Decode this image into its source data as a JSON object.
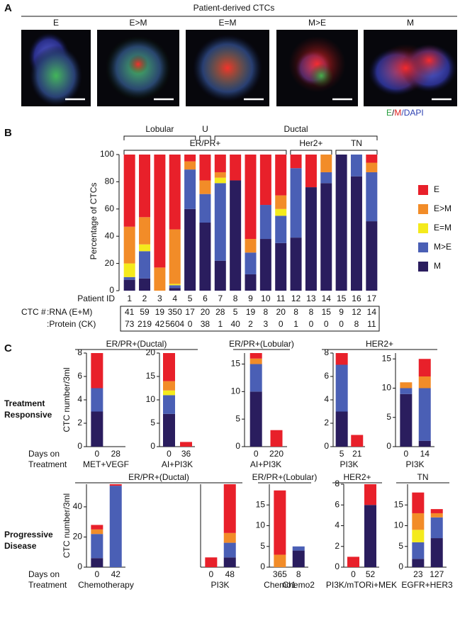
{
  "panel_a": {
    "label": "A",
    "title": "Patient-derived CTCs",
    "images": [
      "E",
      "E>M",
      "E=M",
      "M>E",
      "M"
    ],
    "stain_legend": [
      "E",
      "/",
      "M",
      "/DAPI"
    ]
  },
  "panel_b": {
    "label": "B",
    "groups_top": [
      "Lobular",
      "U",
      "Ductal"
    ],
    "groups_bottom": [
      "ER/PR+",
      "Her2+",
      "TN"
    ],
    "table": {
      "label": "CTC #",
      "rows": [
        {
          "label": ":RNA (E+M)",
          "values": [
            41,
            59,
            19,
            350,
            17,
            20,
            28,
            5,
            19,
            8,
            20,
            8,
            8,
            15,
            9,
            12,
            14
          ]
        },
        {
          "label": ":Protein (CK)",
          "values": [
            73,
            219,
            42,
            5604,
            0,
            38,
            1,
            40,
            2,
            3,
            0,
            1,
            0,
            0,
            0,
            8,
            11
          ]
        }
      ]
    }
  },
  "panel_c": {
    "label": "C",
    "rows": [
      {
        "title": [
          "Treatment",
          "Responsive"
        ],
        "y_label": "CTC number/3ml",
        "x_label": [
          "Days on",
          "Treatment"
        ]
      },
      {
        "title": [
          "Progressive",
          "Disease"
        ],
        "y_label": "CTC number/3ml",
        "x_label": [
          "Days on",
          "Treatment"
        ]
      }
    ]
  },
  "chart_data": [
    {
      "type": "bar",
      "stacked": true,
      "y_label": "Percentage of CTCs",
      "x_label": "Patient ID",
      "categories": [
        1,
        2,
        3,
        4,
        5,
        6,
        7,
        8,
        9,
        10,
        11,
        12,
        13,
        14,
        15,
        16,
        17
      ],
      "ylim": [
        0,
        100
      ],
      "yticks": [
        0,
        20,
        40,
        60,
        80,
        100
      ],
      "legend": "right",
      "series": [
        {
          "name": "E",
          "color": "#e8202a",
          "values": [
            53,
            46,
            83,
            55,
            5,
            19,
            13,
            19,
            62,
            37,
            30,
            10,
            24,
            0,
            0,
            0,
            6
          ]
        },
        {
          "name": "E>M",
          "color": "#f28c28",
          "values": [
            27,
            20,
            17,
            40,
            6,
            10,
            4,
            0,
            10,
            0,
            10,
            0,
            0,
            13,
            0,
            0,
            7
          ]
        },
        {
          "name": "E=M",
          "color": "#f4ea1c",
          "values": [
            10,
            5,
            0,
            1,
            0,
            0,
            4,
            0,
            0,
            0,
            5,
            0,
            0,
            0,
            0,
            0,
            0
          ]
        },
        {
          "name": "M>E",
          "color": "#4a5fb5",
          "values": [
            2,
            20,
            0,
            2,
            29,
            21,
            57,
            0,
            16,
            25,
            20,
            51,
            0,
            8,
            0,
            16,
            36
          ]
        },
        {
          "name": "M",
          "color": "#2a1d5e",
          "values": [
            8,
            9,
            0,
            2,
            60,
            50,
            22,
            81,
            12,
            38,
            35,
            39,
            76,
            79,
            100,
            84,
            51
          ]
        }
      ]
    },
    {
      "type": "bar",
      "stacked": true,
      "group": "ER/PR+(Ductal)",
      "categories": [
        0,
        28
      ],
      "treatment": "MET+VEGF",
      "ylim": [
        0,
        8
      ],
      "yticks": [
        0,
        2,
        4,
        6,
        8
      ],
      "series": [
        {
          "color": "#e8202a",
          "values": [
            3,
            0
          ]
        },
        {
          "color": "#f28c28",
          "values": [
            0,
            0
          ]
        },
        {
          "color": "#f4ea1c",
          "values": [
            0,
            0
          ]
        },
        {
          "color": "#4a5fb5",
          "values": [
            2,
            0
          ]
        },
        {
          "color": "#2a1d5e",
          "values": [
            3,
            0
          ]
        }
      ]
    },
    {
      "type": "bar",
      "stacked": true,
      "categories": [
        0,
        36
      ],
      "treatment": "AI+PI3K",
      "ylim": [
        0,
        20
      ],
      "yticks": [
        0,
        5,
        10,
        15,
        20
      ],
      "series": [
        {
          "color": "#e8202a",
          "values": [
            6,
            1
          ]
        },
        {
          "color": "#f28c28",
          "values": [
            2,
            0
          ]
        },
        {
          "color": "#f4ea1c",
          "values": [
            1,
            0
          ]
        },
        {
          "color": "#4a5fb5",
          "values": [
            4,
            0
          ]
        },
        {
          "color": "#2a1d5e",
          "values": [
            7,
            0
          ]
        }
      ]
    },
    {
      "type": "bar",
      "stacked": true,
      "group": "ER/PR+(Lobular)",
      "categories": [
        0,
        220
      ],
      "treatment": "AI+PI3K",
      "ylim": [
        0,
        17
      ],
      "yticks": [
        0,
        5,
        10,
        15
      ],
      "series": [
        {
          "color": "#e8202a",
          "values": [
            1,
            3
          ]
        },
        {
          "color": "#f28c28",
          "values": [
            1,
            0
          ]
        },
        {
          "color": "#f4ea1c",
          "values": [
            0,
            0
          ]
        },
        {
          "color": "#4a5fb5",
          "values": [
            5,
            0
          ]
        },
        {
          "color": "#2a1d5e",
          "values": [
            10,
            0
          ]
        }
      ]
    },
    {
      "type": "bar",
      "stacked": true,
      "group": "HER2+",
      "categories": [
        5,
        21
      ],
      "treatment": "PI3K",
      "ylim": [
        0,
        8
      ],
      "yticks": [
        0,
        2,
        4,
        6,
        8
      ],
      "series": [
        {
          "color": "#e8202a",
          "values": [
            1,
            1
          ]
        },
        {
          "color": "#f28c28",
          "values": [
            0,
            0
          ]
        },
        {
          "color": "#f4ea1c",
          "values": [
            0,
            0
          ]
        },
        {
          "color": "#4a5fb5",
          "values": [
            4,
            0
          ]
        },
        {
          "color": "#2a1d5e",
          "values": [
            3,
            0
          ]
        }
      ]
    },
    {
      "type": "bar",
      "stacked": true,
      "categories": [
        0,
        14
      ],
      "treatment": "PI3K",
      "ylim": [
        0,
        16
      ],
      "yticks": [
        0,
        5,
        10,
        15
      ],
      "series": [
        {
          "color": "#e8202a",
          "values": [
            0,
            3
          ]
        },
        {
          "color": "#f28c28",
          "values": [
            1,
            2
          ]
        },
        {
          "color": "#f4ea1c",
          "values": [
            0,
            0
          ]
        },
        {
          "color": "#4a5fb5",
          "values": [
            1,
            9
          ]
        },
        {
          "color": "#2a1d5e",
          "values": [
            9,
            1
          ]
        }
      ]
    },
    {
      "type": "bar",
      "stacked": true,
      "group": "ER/PR+(Ductal)",
      "categories": [
        0,
        42
      ],
      "treatment": "Chemotherapy",
      "ylim": [
        0,
        55
      ],
      "yticks": [
        0,
        20,
        40
      ],
      "series": [
        {
          "color": "#e8202a",
          "values": [
            3,
            1
          ]
        },
        {
          "color": "#f28c28",
          "values": [
            3,
            0
          ]
        },
        {
          "color": "#f4ea1c",
          "values": [
            0,
            0
          ]
        },
        {
          "color": "#4a5fb5",
          "values": [
            16,
            54
          ]
        },
        {
          "color": "#2a1d5e",
          "values": [
            6,
            0
          ]
        }
      ]
    },
    {
      "type": "bar",
      "stacked": true,
      "categories": [
        0,
        48
      ],
      "treatment": "PI3K",
      "ylim": [
        0,
        17
      ],
      "series": [
        {
          "color": "#e8202a",
          "values": [
            2,
            10
          ]
        },
        {
          "color": "#f28c28",
          "values": [
            0,
            2
          ]
        },
        {
          "color": "#f4ea1c",
          "values": [
            0,
            0
          ]
        },
        {
          "color": "#4a5fb5",
          "values": [
            0,
            3
          ]
        },
        {
          "color": "#2a1d5e",
          "values": [
            0,
            2
          ]
        }
      ]
    },
    {
      "type": "bar",
      "stacked": true,
      "group": "ER/PR+(Lobular)",
      "categories": [
        365,
        8
      ],
      "treatments": [
        "Chemo1",
        "Chemo2"
      ],
      "ylim": [
        0,
        20
      ],
      "yticks": [
        0,
        5,
        10,
        15
      ],
      "series": [
        {
          "color": "#e8202a",
          "values": [
            15.5,
            0
          ]
        },
        {
          "color": "#f28c28",
          "values": [
            3,
            0
          ]
        },
        {
          "color": "#f4ea1c",
          "values": [
            0,
            0
          ]
        },
        {
          "color": "#4a5fb5",
          "values": [
            0,
            1
          ]
        },
        {
          "color": "#2a1d5e",
          "values": [
            0,
            4
          ]
        }
      ]
    },
    {
      "type": "bar",
      "stacked": true,
      "group": "HER2+",
      "categories": [
        0,
        52
      ],
      "treatment": "PI3K/mTORi+MEK",
      "ylim": [
        0,
        8
      ],
      "yticks": [
        0,
        2,
        4,
        6,
        8
      ],
      "series": [
        {
          "color": "#e8202a",
          "values": [
            1,
            2
          ]
        },
        {
          "color": "#f28c28",
          "values": [
            0,
            0
          ]
        },
        {
          "color": "#f4ea1c",
          "values": [
            0,
            0
          ]
        },
        {
          "color": "#4a5fb5",
          "values": [
            0,
            0
          ]
        },
        {
          "color": "#2a1d5e",
          "values": [
            0,
            6
          ]
        }
      ]
    },
    {
      "type": "bar",
      "stacked": true,
      "group": "TN",
      "categories": [
        23,
        127
      ],
      "treatment": "EGFR+HER3",
      "ylim": [
        0,
        20
      ],
      "yticks": [
        0,
        5,
        10,
        15
      ],
      "series": [
        {
          "color": "#e8202a",
          "values": [
            5,
            1
          ]
        },
        {
          "color": "#f28c28",
          "values": [
            4,
            1
          ]
        },
        {
          "color": "#f4ea1c",
          "values": [
            3,
            0
          ]
        },
        {
          "color": "#4a5fb5",
          "values": [
            4,
            5
          ]
        },
        {
          "color": "#2a1d5e",
          "values": [
            2,
            7
          ]
        }
      ]
    }
  ]
}
